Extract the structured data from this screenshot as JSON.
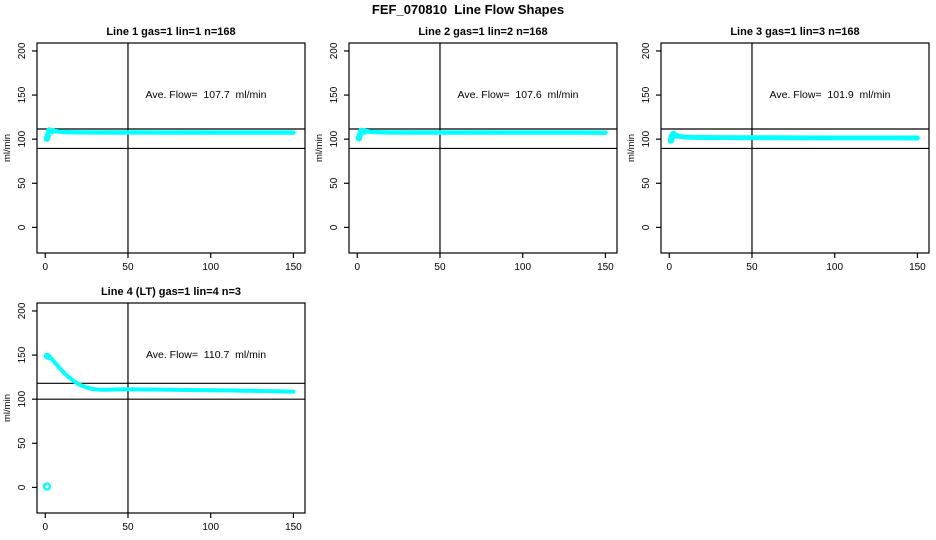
{
  "page": {
    "title": "FEF_070810  Line Flow Shapes"
  },
  "colors": {
    "points": "#00FFFF",
    "axis": "#000000",
    "background": "#FFFFFF"
  },
  "chart_data": [
    {
      "type": "scatter",
      "title": "Line 1 gas=1 lin=1 n=168",
      "annotation": "Ave. Flow=  107.7  ml/min",
      "ave_flow_ml_min": 107.7,
      "n": 168,
      "ylabel": "ml/min",
      "xlim": [
        -5,
        157
      ],
      "ylim": [
        -29,
        209
      ],
      "x_ticks": [
        0,
        50,
        100,
        150
      ],
      "y_ticks": [
        0,
        50,
        100,
        150,
        200
      ],
      "vline_x": 50,
      "hlines": [
        111.5,
        89.5
      ],
      "grid": "off",
      "series": [
        {
          "name": "flow-band",
          "band_halfwidth": 2.5,
          "points": [
            [
              1,
              104
            ],
            [
              2,
              108.5
            ],
            [
              3,
              110.5
            ],
            [
              4,
              110
            ],
            [
              6,
              109.2
            ],
            [
              8,
              108.6
            ],
            [
              11,
              108.2
            ],
            [
              15,
              107.9
            ],
            [
              20,
              107.8
            ],
            [
              30,
              107.7
            ],
            [
              45,
              107.6
            ],
            [
              60,
              107.7
            ],
            [
              75,
              107.5
            ],
            [
              90,
              107.6
            ],
            [
              105,
              107.5
            ],
            [
              120,
              107.5
            ],
            [
              135,
              107.4
            ],
            [
              150,
              107.4
            ]
          ]
        }
      ],
      "blob_points": [
        [
          1,
          100.5
        ],
        [
          1.5,
          104
        ],
        [
          2.5,
          110
        ],
        [
          4,
          109
        ]
      ],
      "outlier_points": []
    },
    {
      "type": "scatter",
      "title": "Line 2 gas=1 lin=2 n=168",
      "annotation": "Ave. Flow=  107.6  ml/min",
      "ave_flow_ml_min": 107.6,
      "n": 168,
      "ylabel": "ml/min",
      "xlim": [
        -5,
        157
      ],
      "ylim": [
        -29,
        209
      ],
      "x_ticks": [
        0,
        50,
        100,
        150
      ],
      "y_ticks": [
        0,
        50,
        100,
        150,
        200
      ],
      "vline_x": 50,
      "hlines": [
        111.5,
        89.5
      ],
      "grid": "off",
      "series": [
        {
          "name": "flow-band",
          "band_halfwidth": 2.5,
          "points": [
            [
              1,
              103.5
            ],
            [
              2,
              108
            ],
            [
              3,
              110
            ],
            [
              4,
              109.6
            ],
            [
              6,
              109
            ],
            [
              8,
              108.4
            ],
            [
              11,
              108
            ],
            [
              15,
              107.8
            ],
            [
              20,
              107.7
            ],
            [
              30,
              107.6
            ],
            [
              45,
              107.6
            ],
            [
              60,
              107.5
            ],
            [
              75,
              107.6
            ],
            [
              90,
              107.5
            ],
            [
              105,
              107.5
            ],
            [
              120,
              107.4
            ],
            [
              135,
              107.4
            ],
            [
              150,
              107.3
            ]
          ]
        }
      ],
      "blob_points": [
        [
          1,
          101
        ],
        [
          1.5,
          104.5
        ],
        [
          2.5,
          109.5
        ],
        [
          4,
          108.5
        ]
      ],
      "outlier_points": []
    },
    {
      "type": "scatter",
      "title": "Line 3 gas=1 lin=3 n=168",
      "annotation": "Ave. Flow=  101.9  ml/min",
      "ave_flow_ml_min": 101.9,
      "n": 168,
      "ylabel": "ml/min",
      "xlim": [
        -5,
        157
      ],
      "ylim": [
        -29,
        209
      ],
      "x_ticks": [
        0,
        50,
        100,
        150
      ],
      "y_ticks": [
        0,
        50,
        100,
        150,
        200
      ],
      "vline_x": 50,
      "hlines": [
        111.5,
        89.5
      ],
      "grid": "off",
      "series": [
        {
          "name": "flow-band",
          "band_halfwidth": 2.8,
          "points": [
            [
              1,
              103
            ],
            [
              2,
              105.5
            ],
            [
              3,
              105
            ],
            [
              5,
              103.5
            ],
            [
              7,
              102.8
            ],
            [
              10,
              102.3
            ],
            [
              14,
              102
            ],
            [
              20,
              101.9
            ],
            [
              30,
              101.8
            ],
            [
              45,
              101.7
            ],
            [
              60,
              101.7
            ],
            [
              80,
              101.6
            ],
            [
              100,
              101.5
            ],
            [
              120,
              101.5
            ],
            [
              135,
              101.4
            ],
            [
              150,
              101.3
            ]
          ]
        }
      ],
      "blob_points": [
        [
          1,
          98.5
        ],
        [
          1.5,
          102
        ],
        [
          2.5,
          106
        ],
        [
          4,
          104
        ]
      ],
      "outlier_points": []
    },
    {
      "type": "scatter",
      "title": "Line 4 (LT) gas=1 lin=4 n=3",
      "annotation": "Ave. Flow=  110.7  ml/min",
      "ave_flow_ml_min": 110.7,
      "n": 3,
      "ylabel": "ml/min",
      "xlim": [
        -5,
        157
      ],
      "ylim": [
        -29,
        209
      ],
      "x_ticks": [
        0,
        50,
        100,
        150
      ],
      "y_ticks": [
        0,
        50,
        100,
        150,
        200
      ],
      "vline_x": 50,
      "hlines": [
        118,
        100
      ],
      "grid": "off",
      "series": [
        {
          "name": "flow-band",
          "band_halfwidth": 2.3,
          "points": [
            [
              1,
              148.5
            ],
            [
              2,
              148
            ],
            [
              3,
              146.8
            ],
            [
              4,
              145.2
            ],
            [
              5,
              143.2
            ],
            [
              6,
              141
            ],
            [
              7,
              138.8
            ],
            [
              8,
              136.6
            ],
            [
              9,
              134.5
            ],
            [
              10,
              132.5
            ],
            [
              12,
              128.8
            ],
            [
              14,
              125.4
            ],
            [
              16,
              122.3
            ],
            [
              18,
              119.6
            ],
            [
              20,
              117.3
            ],
            [
              22,
              115.4
            ],
            [
              24,
              113.9
            ],
            [
              26,
              112.7
            ],
            [
              28,
              111.8
            ],
            [
              31,
              111.1
            ],
            [
              34,
              110.7
            ],
            [
              37,
              110.6
            ],
            [
              40,
              110.8
            ],
            [
              45,
              111.1
            ],
            [
              50,
              111.2
            ],
            [
              55,
              111.1
            ],
            [
              60,
              111
            ],
            [
              70,
              110.8
            ],
            [
              80,
              110.5
            ],
            [
              90,
              110.3
            ],
            [
              100,
              110.1
            ],
            [
              110,
              109.9
            ],
            [
              120,
              109.6
            ],
            [
              130,
              109.3
            ],
            [
              140,
              109
            ],
            [
              150,
              108.6
            ]
          ]
        }
      ],
      "blob_points": [
        [
          1,
          149
        ],
        [
          2,
          148
        ]
      ],
      "outlier_points": [
        [
          1,
          1
        ]
      ]
    }
  ]
}
